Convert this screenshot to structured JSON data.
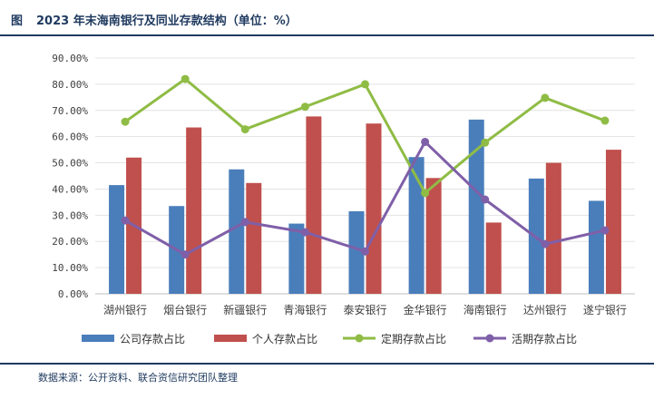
{
  "header": {
    "label": "图",
    "title": "2023 年末海南银行及同业存款结构（单位：%）"
  },
  "footer": {
    "source": "数据来源：公开资料、联合资信研究团队整理"
  },
  "colors": {
    "corporate": "#4a7ebb",
    "personal": "#c0504d",
    "time": "#8fbc45",
    "demand": "#7f5fa8",
    "frame": "#1f3a5f"
  },
  "chart_data": {
    "type": "bar",
    "categories": [
      "湖州银行",
      "烟台银行",
      "新疆银行",
      "青海银行",
      "泰安银行",
      "金华银行",
      "海南银行",
      "达州银行",
      "遂宁银行"
    ],
    "ylim": [
      0,
      90
    ],
    "yticks": [
      "0.00%",
      "10.00%",
      "20.00%",
      "30.00%",
      "40.00%",
      "50.00%",
      "60.00%",
      "70.00%",
      "80.00%",
      "90.00%"
    ],
    "grid": true,
    "legend_position": "bottom",
    "series": [
      {
        "name": "公司存款占比",
        "kind": "bar",
        "values": [
          41.5,
          33.5,
          47.5,
          26.8,
          31.5,
          52.2,
          66.5,
          44.0,
          35.5
        ]
      },
      {
        "name": "个人存款占比",
        "kind": "bar",
        "values": [
          52.0,
          63.5,
          42.3,
          67.7,
          65.0,
          44.2,
          27.2,
          50.0,
          55.0
        ]
      },
      {
        "name": "定期存款占比",
        "kind": "line",
        "values": [
          65.7,
          82.0,
          62.8,
          71.4,
          80.0,
          38.5,
          57.7,
          74.8,
          66.1
        ]
      },
      {
        "name": "活期存款占比",
        "kind": "line",
        "values": [
          28.0,
          15.0,
          27.4,
          23.5,
          16.2,
          58.0,
          36.0,
          19.0,
          24.2
        ]
      }
    ]
  }
}
